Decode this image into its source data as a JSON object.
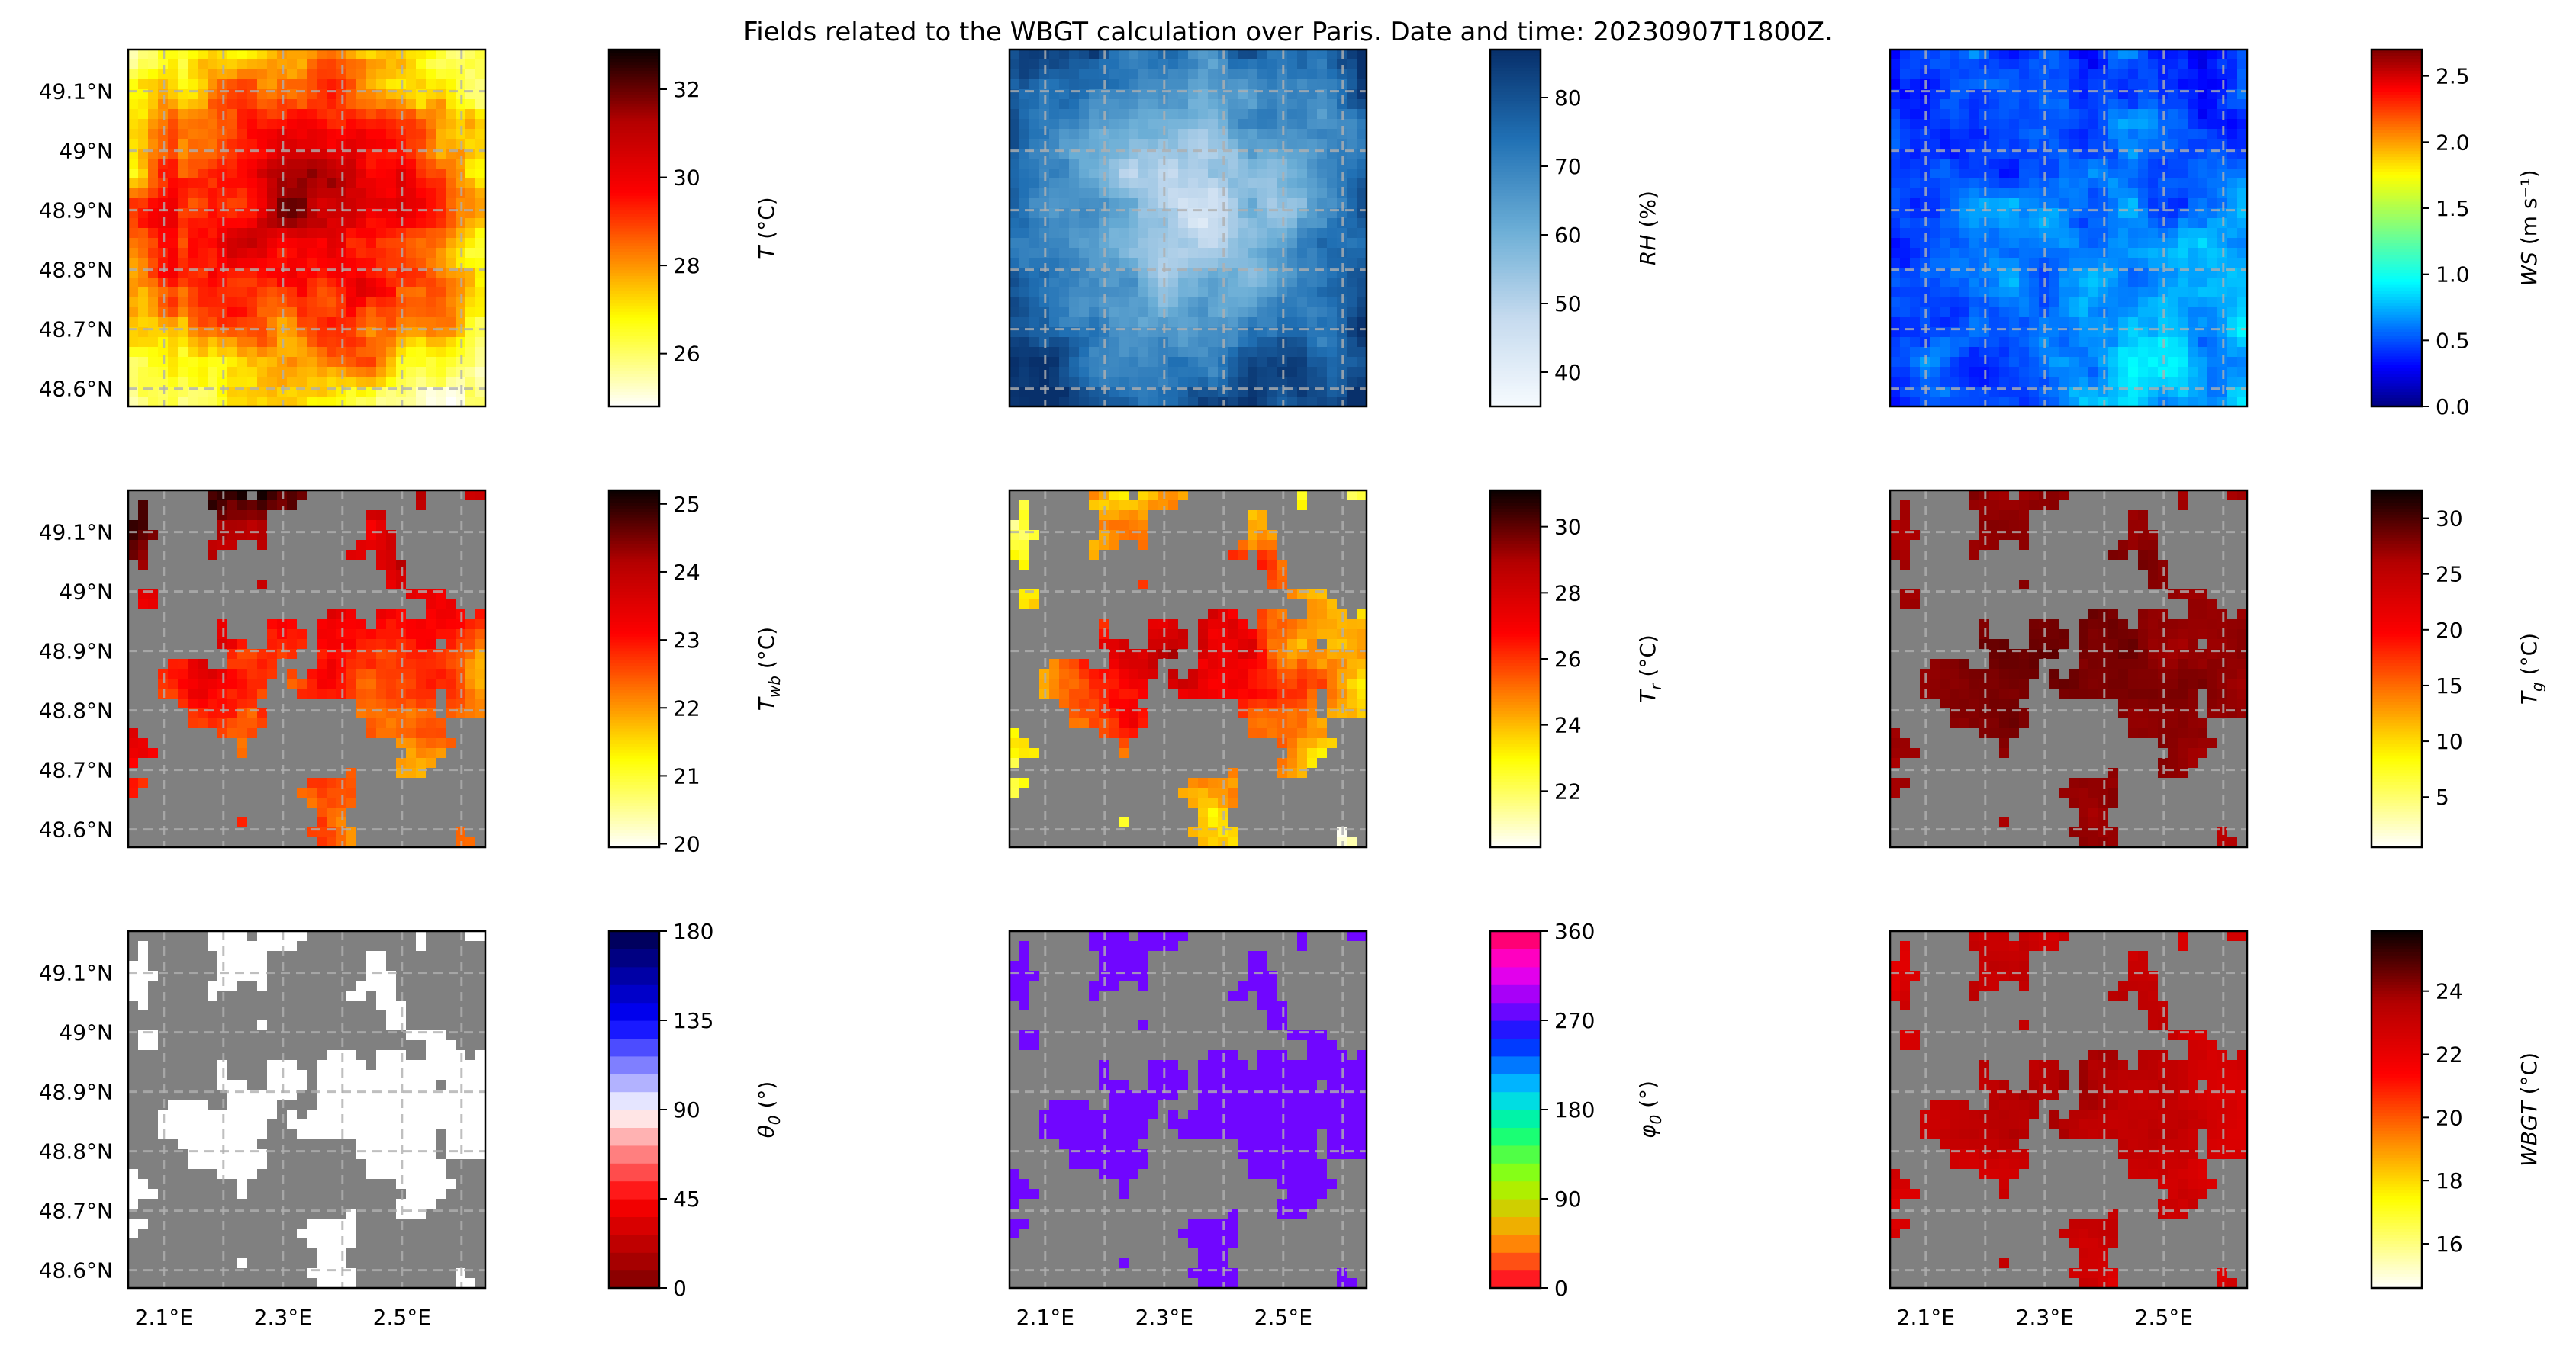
{
  "figure": {
    "title": "Fields related to the WBGT calculation over Paris. Date and time: 20230907T1800Z."
  },
  "chart_data": {
    "type": "heatmap",
    "lat_ticks": [
      "49.1°N",
      "49°N",
      "48.9°N",
      "48.8°N",
      "48.7°N",
      "48.6°N"
    ],
    "lon_ticks": [
      "2.1°E",
      "2.3°E",
      "2.5°E"
    ],
    "lat_values": [
      49.1,
      49.0,
      48.9,
      48.8,
      48.7,
      48.6
    ],
    "lon_values": [
      2.1,
      2.3,
      2.5
    ],
    "lat_range": [
      48.57,
      49.17
    ],
    "lon_range": [
      2.04,
      2.64
    ],
    "grid": true,
    "mask_color": "#808080",
    "panels": [
      {
        "id": "T",
        "row": 0,
        "col": 0,
        "cmap": "hot_r",
        "vmin": 24.8,
        "vmax": 32.9,
        "ticks": [
          26,
          28,
          30,
          32
        ],
        "tick_labels": [
          "26",
          "28",
          "30",
          "32"
        ],
        "label_main": "T",
        "label_sub": "",
        "label_unit": "(°C)",
        "masked": false
      },
      {
        "id": "RH",
        "row": 0,
        "col": 1,
        "cmap": "Blues",
        "vmin": 35,
        "vmax": 87,
        "ticks": [
          40,
          50,
          60,
          70,
          80
        ],
        "tick_labels": [
          "40",
          "50",
          "60",
          "70",
          "80"
        ],
        "label_main": "RH",
        "label_sub": "",
        "label_unit": "(%)",
        "masked": false
      },
      {
        "id": "WS",
        "row": 0,
        "col": 2,
        "cmap": "jet",
        "vmin": 0,
        "vmax": 2.7,
        "ticks": [
          0,
          0.5,
          1,
          1.5,
          2,
          2.5
        ],
        "tick_labels": [
          "0.0",
          "0.5",
          "1.0",
          "1.5",
          "2.0",
          "2.5"
        ],
        "label_main": "WS",
        "label_sub": "",
        "label_unit": "(m s⁻¹)",
        "masked": false
      },
      {
        "id": "Twb",
        "row": 1,
        "col": 0,
        "cmap": "hot_r",
        "vmin": 19.95,
        "vmax": 25.2,
        "ticks": [
          20,
          21,
          22,
          23,
          24,
          25
        ],
        "tick_labels": [
          "20",
          "21",
          "22",
          "23",
          "24",
          "25"
        ],
        "label_main": "T",
        "label_sub": "wb",
        "label_unit": "(°C)",
        "masked": true
      },
      {
        "id": "Tr",
        "row": 1,
        "col": 1,
        "cmap": "hot_r",
        "vmin": 20.3,
        "vmax": 31.1,
        "ticks": [
          22,
          24,
          26,
          28,
          30
        ],
        "tick_labels": [
          "22",
          "24",
          "26",
          "28",
          "30"
        ],
        "label_main": "T",
        "label_sub": "r",
        "label_unit": "(°C)",
        "masked": true
      },
      {
        "id": "Tg",
        "row": 1,
        "col": 2,
        "cmap": "hot_r",
        "vmin": 0.5,
        "vmax": 32.5,
        "ticks": [
          5,
          10,
          15,
          20,
          25,
          30
        ],
        "tick_labels": [
          "5",
          "10",
          "15",
          "20",
          "25",
          "30"
        ],
        "label_main": "T",
        "label_sub": "g",
        "label_unit": "(°C)",
        "masked": true
      },
      {
        "id": "theta0",
        "row": 2,
        "col": 0,
        "cmap": "seismic_r",
        "vmin": 0,
        "vmax": 180,
        "ticks": [
          0,
          45,
          90,
          135,
          180
        ],
        "tick_labels": [
          "0",
          "45",
          "90",
          "135",
          "180"
        ],
        "label_main": "θ",
        "label_sub": "0",
        "label_unit": "(°)",
        "masked": true,
        "discrete": 20
      },
      {
        "id": "phi0",
        "row": 2,
        "col": 1,
        "cmap": "gist_rainbow",
        "vmin": 0,
        "vmax": 360,
        "ticks": [
          0,
          90,
          180,
          270,
          360
        ],
        "tick_labels": [
          "0",
          "90",
          "180",
          "270",
          "360"
        ],
        "label_main": "φ",
        "label_sub": "0",
        "label_unit": "(°)",
        "masked": true,
        "discrete": 20
      },
      {
        "id": "WBGT",
        "row": 2,
        "col": 2,
        "cmap": "hot_r",
        "vmin": 14.6,
        "vmax": 25.9,
        "ticks": [
          16,
          18,
          20,
          22,
          24
        ],
        "tick_labels": [
          "16",
          "18",
          "20",
          "22",
          "24"
        ],
        "label_main": "WBGT",
        "label_sub": "",
        "label_unit": "(°C)",
        "masked": true
      }
    ]
  }
}
